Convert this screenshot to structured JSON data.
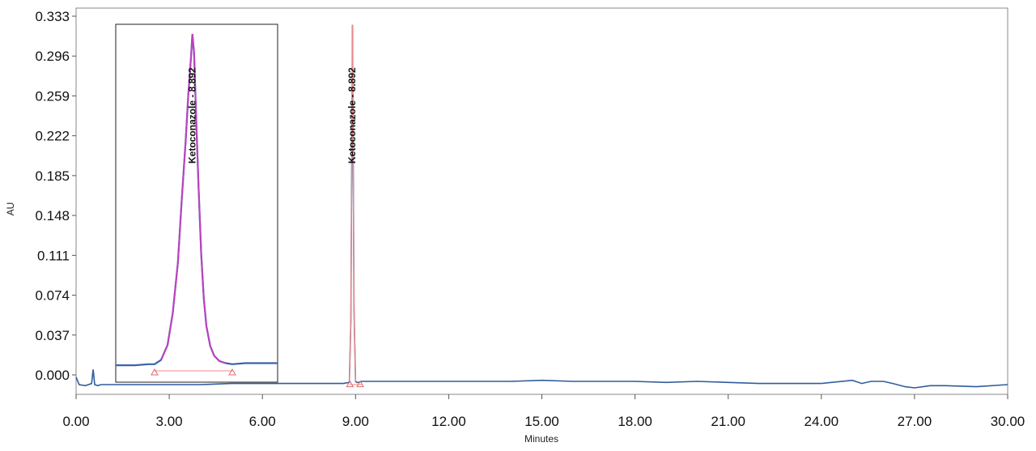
{
  "chart_data": {
    "type": "line",
    "title": "",
    "xlabel": "Minutes",
    "ylabel": "AU",
    "xlim": [
      0,
      30
    ],
    "ylim": [
      -0.012,
      0.333
    ],
    "x_ticks": [
      "0.00",
      "3.00",
      "6.00",
      "9.00",
      "12.00",
      "15.00",
      "18.00",
      "21.00",
      "24.00",
      "27.00",
      "30.00"
    ],
    "y_ticks": [
      "0.000",
      "0.037",
      "0.074",
      "0.111",
      "0.148",
      "0.185",
      "0.222",
      "0.259",
      "0.296",
      "0.333"
    ],
    "grid": false,
    "series": [
      {
        "color": "#2f5d9b",
        "x": [
          0.0,
          0.1,
          0.3,
          0.5,
          0.55,
          0.6,
          0.7,
          0.8,
          1.0,
          2.0,
          3.0,
          4.0,
          5.0,
          6.0,
          7.0,
          8.0,
          8.6,
          8.8,
          8.85,
          8.9,
          8.95,
          9.0,
          9.05,
          9.1,
          9.2,
          9.5,
          10.0,
          11.0,
          12.0,
          13.0,
          14.0,
          15.0,
          16.0,
          17.0,
          18.0,
          19.0,
          20.0,
          21.0,
          22.0,
          23.0,
          24.0,
          25.0,
          25.3,
          25.6,
          26.0,
          26.3,
          26.7,
          27.0,
          27.5,
          28.0,
          29.0,
          30.0
        ],
        "y": [
          -0.002,
          -0.009,
          -0.01,
          -0.008,
          0.005,
          -0.009,
          -0.01,
          -0.009,
          -0.009,
          -0.009,
          -0.009,
          -0.009,
          -0.008,
          -0.008,
          -0.008,
          -0.008,
          -0.008,
          -0.007,
          0.05,
          0.325,
          0.06,
          -0.006,
          -0.007,
          -0.007,
          -0.006,
          -0.006,
          -0.006,
          -0.006,
          -0.006,
          -0.006,
          -0.006,
          -0.005,
          -0.006,
          -0.006,
          -0.006,
          -0.007,
          -0.006,
          -0.007,
          -0.008,
          -0.008,
          -0.008,
          -0.005,
          -0.008,
          -0.006,
          -0.006,
          -0.008,
          -0.011,
          -0.012,
          -0.01,
          -0.01,
          -0.011,
          -0.009
        ]
      }
    ],
    "annotations": [
      {
        "text": "Ketoconazole - 8.892",
        "x": 8.892,
        "y": 0.325
      }
    ],
    "inset": {
      "xlim": [
        8.3,
        9.55
      ],
      "ylim": [
        -0.012,
        0.333
      ],
      "label": "Ketoconazole - 8.892",
      "peak_x": 8.892,
      "peak_y": 0.316,
      "baseline_markers_x": [
        8.6,
        9.2
      ],
      "series_x": [
        8.3,
        8.45,
        8.55,
        8.6,
        8.65,
        8.7,
        8.74,
        8.78,
        8.81,
        8.84,
        8.86,
        8.88,
        8.892,
        8.905,
        8.92,
        8.94,
        8.96,
        8.98,
        9.0,
        9.03,
        9.06,
        9.1,
        9.15,
        9.2,
        9.3,
        9.55
      ],
      "series_y": [
        0.003,
        0.003,
        0.004,
        0.004,
        0.008,
        0.022,
        0.052,
        0.1,
        0.16,
        0.215,
        0.258,
        0.292,
        0.316,
        0.298,
        0.24,
        0.17,
        0.108,
        0.066,
        0.04,
        0.021,
        0.012,
        0.007,
        0.005,
        0.004,
        0.005,
        0.005
      ]
    }
  }
}
